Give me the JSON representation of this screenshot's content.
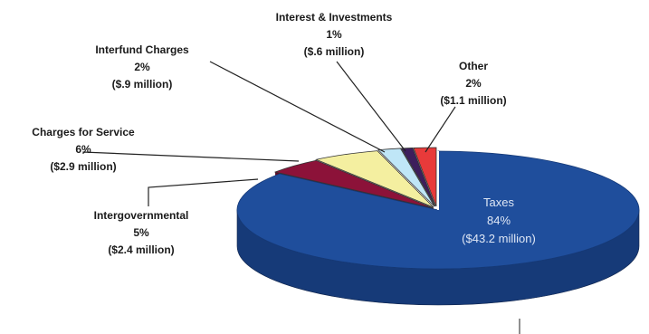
{
  "chart_data": {
    "type": "pie",
    "title": "",
    "style": "3d-exploded",
    "unit": "million $",
    "slices": [
      {
        "label": "Taxes",
        "percent_label": "84%",
        "amount_label": "($43.2 million)",
        "percent": 84,
        "amount": 43.2,
        "color": "#1f4e9c",
        "side_color": "#163a78"
      },
      {
        "label": "Intergovernmental",
        "percent_label": "5%",
        "amount_label": "($2.4 million)",
        "percent": 5,
        "amount": 2.4,
        "color": "#8c1239",
        "side_color": "#5e0a25"
      },
      {
        "label": "Charges for Service",
        "percent_label": "6%",
        "amount_label": "($2.9 million)",
        "percent": 6,
        "amount": 2.9,
        "color": "#f4efa0",
        "side_color": "#c9c27a"
      },
      {
        "label": "Interfund Charges",
        "percent_label": "2%",
        "amount_label": "($.9 million)",
        "percent": 2,
        "amount": 0.9,
        "color": "#bfe6f7",
        "side_color": "#93bdd0"
      },
      {
        "label": "Interest & Investments",
        "percent_label": "1%",
        "amount_label": "($.6 million)",
        "percent": 1,
        "amount": 0.6,
        "color": "#3d1e5c",
        "side_color": "#28133c"
      },
      {
        "label": "Other",
        "percent_label": "2%",
        "amount_label": "($1.1 million)",
        "percent": 2,
        "amount": 1.1,
        "color": "#e83a3a",
        "side_color": "#b32525"
      }
    ]
  }
}
